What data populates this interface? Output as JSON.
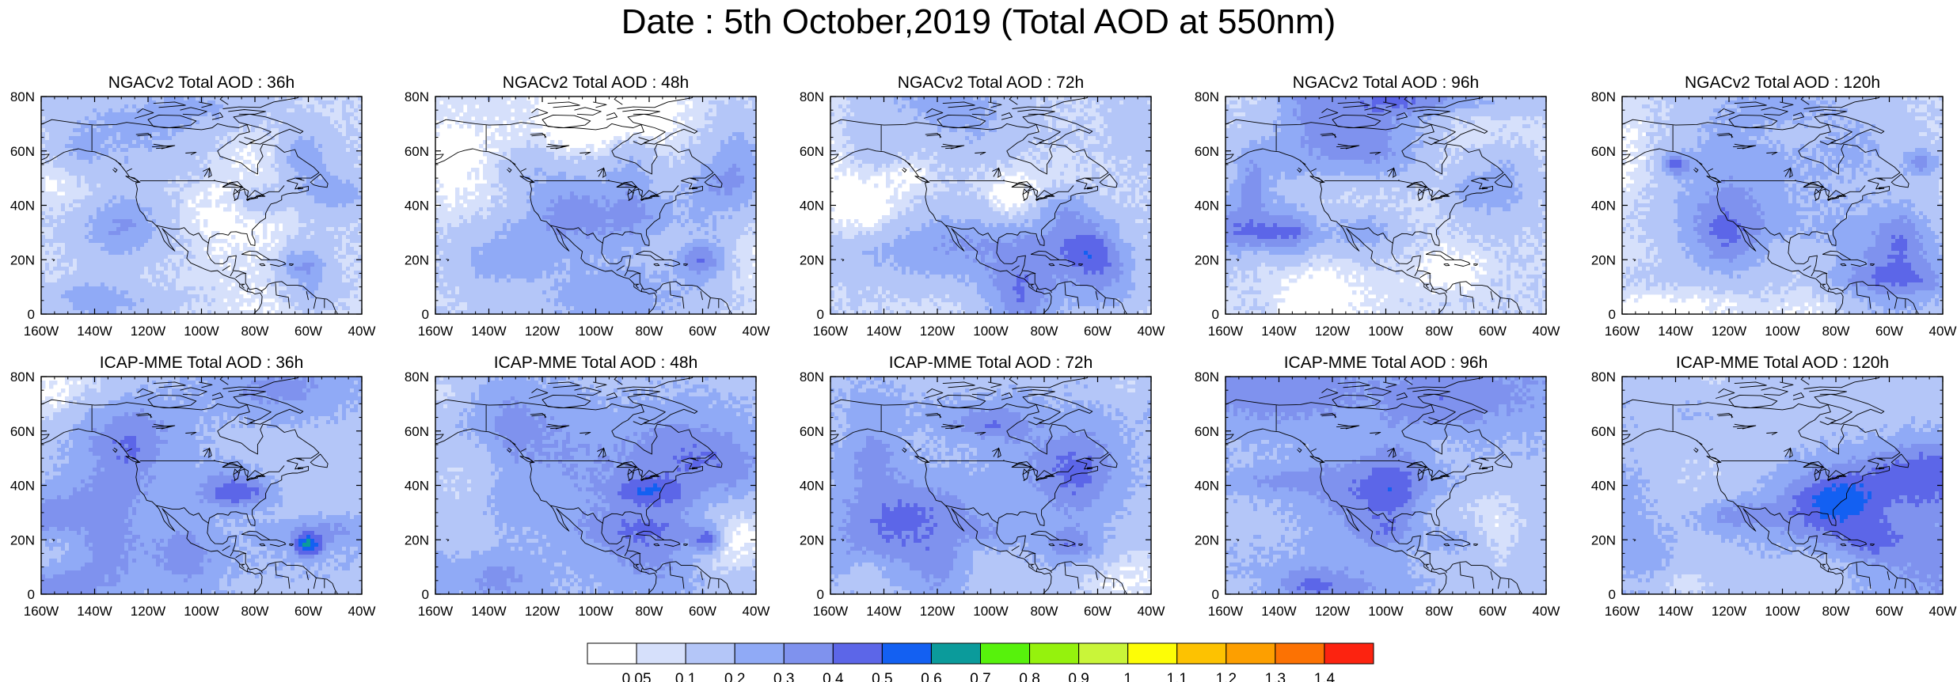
{
  "title": "Date : 5th October,2019 (Total AOD at 550nm)",
  "lat_ticks": [
    "80N",
    "60N",
    "40N",
    "20N",
    "0"
  ],
  "lon_ticks": [
    "160W",
    "140W",
    "120W",
    "100W",
    "80W",
    "60W",
    "40W"
  ],
  "rows": [
    {
      "model": "NGACv2",
      "panels": [
        {
          "title": "NGACv2 Total AOD : 36h"
        },
        {
          "title": "NGACv2 Total AOD : 48h"
        },
        {
          "title": "NGACv2 Total AOD : 72h"
        },
        {
          "title": "NGACv2 Total AOD : 96h"
        },
        {
          "title": "NGACv2 Total AOD : 120h"
        }
      ]
    },
    {
      "model": "ICAP-MME",
      "panels": [
        {
          "title": "ICAP-MME Total AOD : 36h"
        },
        {
          "title": "ICAP-MME Total AOD : 48h"
        },
        {
          "title": "ICAP-MME Total AOD : 72h"
        },
        {
          "title": "ICAP-MME Total AOD : 96h"
        },
        {
          "title": "ICAP-MME Total AOD : 120h"
        }
      ]
    }
  ],
  "colorbar": {
    "levels": [
      "0.05",
      "0.1",
      "0.2",
      "0.3",
      "0.4",
      "0.5",
      "0.6",
      "0.7",
      "0.8",
      "0.9",
      "1",
      "1.1",
      "1.2",
      "1.3",
      "1.4"
    ],
    "colors": [
      "#ffffff",
      "#d6e0fb",
      "#b4c6f8",
      "#90aaf6",
      "#7f92ee",
      "#5c66e8",
      "#1360f2",
      "#0b9b9b",
      "#57f20c",
      "#95f20d",
      "#c9f539",
      "#fdfd06",
      "#fdc201",
      "#fd9f00",
      "#fc7203",
      "#fc2310"
    ]
  }
}
